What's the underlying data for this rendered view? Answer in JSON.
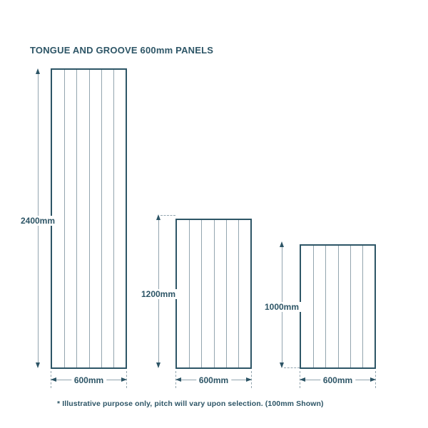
{
  "title": "TONGUE AND GROOVE 600mm PANELS",
  "footnote": "* Illustrative purpose only, pitch will vary upon selection. (100mm Shown)",
  "colors": {
    "ink": "#2d5566",
    "line": "#93a5af",
    "background": "#ffffff"
  },
  "panels": [
    {
      "id": "2400x600",
      "height_label": "2400mm",
      "width_label": "600mm",
      "height_mm": 2400,
      "width_mm": 600,
      "groove_segments": 6
    },
    {
      "id": "1200x600",
      "height_label": "1200mm",
      "width_label": "600mm",
      "height_mm": 1200,
      "width_mm": 600,
      "groove_segments": 6
    },
    {
      "id": "1000x600",
      "height_label": "1000mm",
      "width_label": "600mm",
      "height_mm": 1000,
      "width_mm": 600,
      "groove_segments": 6
    }
  ]
}
